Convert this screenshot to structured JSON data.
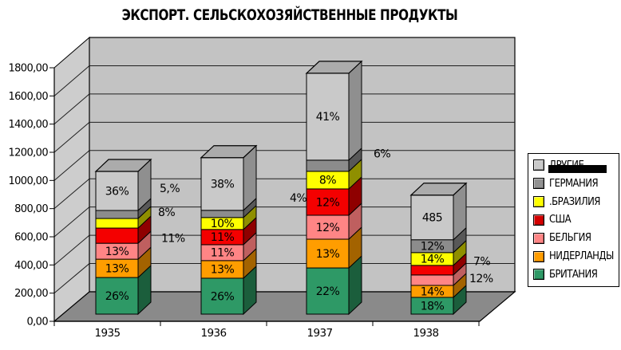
{
  "chart_data": {
    "type": "bar",
    "subtype": "3d-stacked-column",
    "title": "ЭКСПОРТ. СЕЛЬСКОХОЗЯЙСТВЕННЫЕ ПРОДУКТЫ",
    "categories": [
      "1935",
      "1936",
      "1937",
      "1938"
    ],
    "y_axis": {
      "min": 0,
      "max": 1800,
      "step": 200,
      "tick_labels": [
        "0,00",
        "200,00",
        "400,00",
        "600,00",
        "800,00",
        "1000,00",
        "1200,00",
        "1400,00",
        "1600,00",
        "1800,00"
      ]
    },
    "gridlines": true,
    "legend_position": "right",
    "totals_est": [
      1013,
      1111,
      1710,
      845
    ],
    "series": [
      {
        "name": "БРИТАНИЯ",
        "color": "#2E9966",
        "side_color": "#1B5E3C",
        "values_est": [
          260,
          255,
          328,
          119
        ],
        "data_labels": [
          {
            "text": "26%",
            "placement": "inside"
          },
          {
            "text": "26%",
            "placement": "inside"
          },
          {
            "text": "22%",
            "placement": "inside"
          },
          {
            "text": "18%",
            "placement": "inside"
          }
        ]
      },
      {
        "name": "НИДЕРЛАНДЫ",
        "color": "#FF9D00",
        "side_color": "#A36300",
        "values_est": [
          130,
          125,
          204,
          85
        ],
        "data_labels": [
          {
            "text": "13%",
            "placement": "inside"
          },
          {
            "text": "13%",
            "placement": "inside"
          },
          {
            "text": "13%",
            "placement": "inside"
          },
          {
            "text": "14%",
            "placement": "inside"
          }
        ]
      },
      {
        "name": "БЕЛЬГИЯ",
        "color": "#FF8585",
        "side_color": "#BF5F5F",
        "values_est": [
          113,
          113,
          170,
          74
        ],
        "data_labels": [
          {
            "text": "13%",
            "placement": "inside"
          },
          {
            "text": "11%",
            "placement": "inside"
          },
          {
            "text": "12%",
            "placement": "inside"
          },
          {
            "text": "12%",
            "placement": "outside",
            "dx": 20,
            "dy": -2
          }
        ]
      },
      {
        "name": "США",
        "color": "#F40000",
        "side_color": "#8F0000",
        "values_est": [
          108,
          108,
          187,
          68
        ],
        "data_labels": [
          {
            "text": "11%",
            "placement": "outside",
            "dx": 29,
            "dy": 3
          },
          {
            "text": "11%",
            "placement": "inside"
          },
          {
            "text": "12%",
            "placement": "inside"
          },
          {
            "text": "7%",
            "placement": "outside",
            "dx": 25,
            "dy": -11
          }
        ]
      },
      {
        "name": "БРАЗИЛИЯ",
        "color": "#FFFF00",
        "side_color": "#8F8F00",
        "values_est": [
          68,
          85,
          125,
          91
        ],
        "data_labels": [
          {
            "text": "8%",
            "placement": "outside",
            "dx": 25,
            "dy": -14
          },
          {
            "text": "10%",
            "placement": "inside"
          },
          {
            "text": "8%",
            "placement": "inside"
          },
          {
            "text": "14%",
            "placement": "inside"
          }
        ]
      },
      {
        "name": "ГЕРМАНИЯ",
        "color": "#8C8C8C",
        "side_color": "#585858",
        "values_est": [
          57,
          51,
          79,
          91
        ],
        "data_labels": [
          {
            "text": "5,%",
            "placement": "outside",
            "dx": 27,
            "dy": -33
          },
          {
            "text": "4%",
            "placement": "outside",
            "dx": 58,
            "dy": -20
          },
          {
            "text": "6%",
            "placement": "outside",
            "dx": 31,
            "dy": -15
          },
          {
            "text": "12%",
            "placement": "inside"
          }
        ]
      },
      {
        "name": "ДРУГИЕ",
        "color": "#C9C9C9",
        "side_color": "#8F8F8F",
        "top_color": "#ABABAB",
        "values_est": [
          277,
          374,
          617,
          317
        ],
        "data_labels": [
          {
            "text": "36%",
            "placement": "inside"
          },
          {
            "text": "38%",
            "placement": "inside"
          },
          {
            "text": "41%",
            "placement": "inside"
          },
          {
            "text": "485",
            "placement": "inside"
          }
        ]
      }
    ]
  },
  "legend": {
    "items": [
      {
        "label": "ДРУГИЕ",
        "color": "#C9C9C9",
        "redacted": true
      },
      {
        "label": "ГЕРМАНИЯ",
        "color": "#919191",
        "redacted": false
      },
      {
        "label": ".БРАЗИЛИЯ",
        "color": "#FFFF00",
        "redacted": false
      },
      {
        "label": "США",
        "color": "#D40000",
        "redacted": false
      },
      {
        "label": "БЕЛЬГИЯ",
        "color": "#FF8585",
        "redacted": false
      },
      {
        "label": "НИДЕРЛАНДЫ",
        "color": "#FF9D00",
        "redacted": false
      },
      {
        "label": "БРИТАНИЯ",
        "color": "#2E9966",
        "redacted": false
      }
    ]
  },
  "colors": {
    "back_wall": "#C3C3C3",
    "left_wall": "#CDCDCD",
    "floor": "#8A8A8A",
    "gridline": "#1F1F1F",
    "outline": "#000000"
  }
}
